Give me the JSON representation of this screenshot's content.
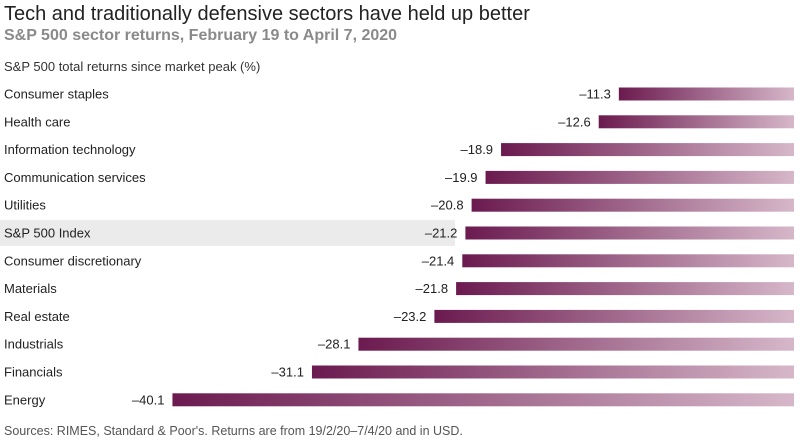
{
  "title": "Tech and traditionally defensive sectors have held up better",
  "subtitle": "S&P 500 sector returns, February 19 to April 7, 2020",
  "axis_note": "S&P 500 total returns since market peak (%)",
  "source": "Sources: RIMES, Standard & Poor's. Returns are from 19/2/20–7/4/20 and in USD.",
  "colors": {
    "bar_dark": "#6b1a4f",
    "bar_light": "#d6b7c9",
    "highlight_row": "#ebebeb"
  },
  "chart_data": {
    "type": "bar",
    "orientation": "horizontal",
    "title": "Tech and traditionally defensive sectors have held up better",
    "subtitle": "S&P 500 sector returns, February 19 to April 7, 2020",
    "xlabel": "S&P 500 total returns since market peak (%)",
    "ylabel": "",
    "xlim": [
      -40.1,
      0
    ],
    "grid": false,
    "legend": "none",
    "highlight": "S&P 500 Index",
    "categories": [
      "Consumer staples",
      "Health care",
      "Information technology",
      "Communication services",
      "Utilities",
      "S&P 500 Index",
      "Consumer discretionary",
      "Materials",
      "Real estate",
      "Industrials",
      "Financials",
      "Energy"
    ],
    "values": [
      -11.3,
      -12.6,
      -18.9,
      -19.9,
      -20.8,
      -21.2,
      -21.4,
      -21.8,
      -23.2,
      -28.1,
      -31.1,
      -40.1
    ],
    "value_labels": [
      "–11.3",
      "–12.6",
      "–18.9",
      "–19.9",
      "–20.8",
      "–21.2",
      "–21.4",
      "–21.8",
      "–23.2",
      "–28.1",
      "–31.1",
      "–40.1"
    ]
  }
}
